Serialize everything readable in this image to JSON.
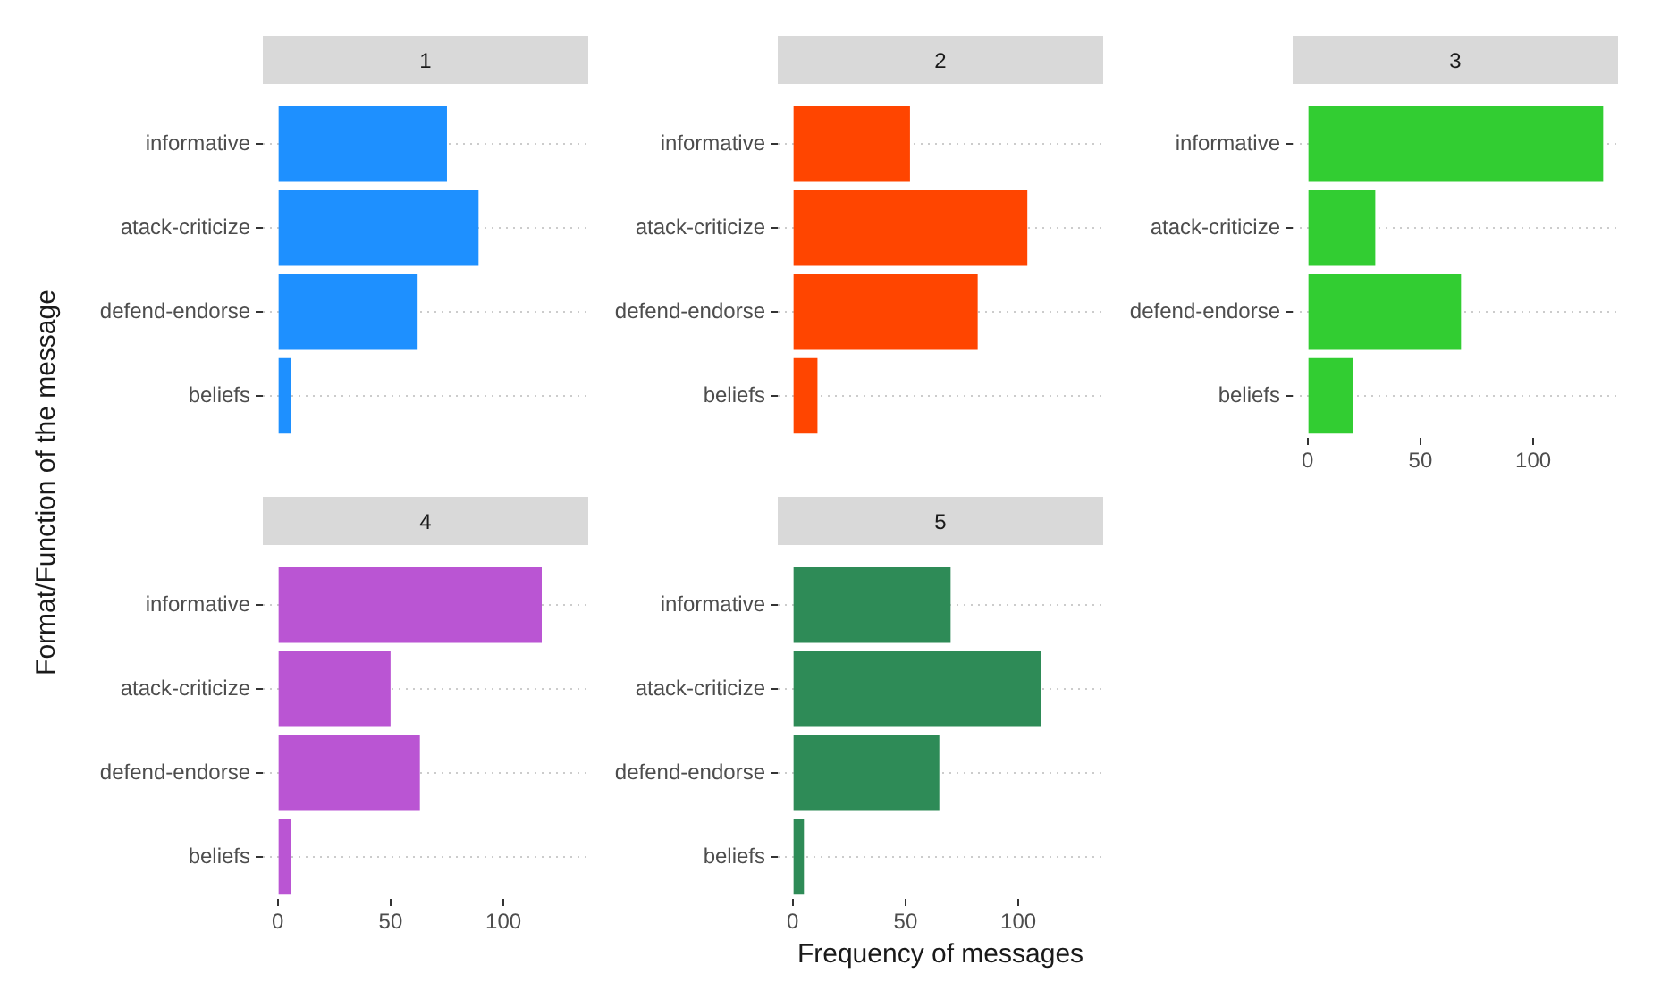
{
  "chart_data": [
    {
      "type": "bar",
      "orientation": "horizontal",
      "title": "1",
      "ylabel": "Format/Function of the message",
      "categories": [
        "informative",
        "atack-criticize",
        "defend-endorse",
        "beliefs"
      ],
      "values": [
        75,
        89,
        62,
        6
      ],
      "color": "#1e90ff",
      "xlim": [
        -6.6,
        137.6
      ],
      "xticks": [
        0,
        50,
        100
      ],
      "grid": "y",
      "tick_labels": "y"
    },
    {
      "type": "bar",
      "orientation": "horizontal",
      "title": "2",
      "categories": [
        "informative",
        "atack-criticize",
        "defend-endorse",
        "beliefs"
      ],
      "values": [
        52,
        104,
        82,
        11
      ],
      "color": "#ff4500",
      "xlim": [
        -6.6,
        137.6
      ],
      "xticks": [
        0,
        50,
        100
      ],
      "grid": "y",
      "tick_labels": "y"
    },
    {
      "type": "bar",
      "orientation": "horizontal",
      "title": "3",
      "categories": [
        "informative",
        "atack-criticize",
        "defend-endorse",
        "beliefs"
      ],
      "values": [
        131,
        30,
        68,
        20
      ],
      "color": "#32cd32",
      "xlim": [
        -6.6,
        137.6
      ],
      "xticks": [
        0,
        50,
        100
      ],
      "grid": "y"
    },
    {
      "type": "bar",
      "orientation": "horizontal",
      "title": "4",
      "categories": [
        "informative",
        "atack-criticize",
        "defend-endorse",
        "beliefs"
      ],
      "values": [
        117,
        50,
        63,
        6
      ],
      "color": "#ba55d3",
      "xlim": [
        -6.6,
        137.6
      ],
      "xticks": [
        0,
        50,
        100
      ],
      "grid": "y"
    },
    {
      "type": "bar",
      "orientation": "horizontal",
      "title": "5",
      "xlabel": "Frequency of messages",
      "categories": [
        "informative",
        "atack-criticize",
        "defend-endorse",
        "beliefs"
      ],
      "values": [
        70,
        110,
        65,
        5
      ],
      "color": "#2e8b57",
      "xlim": [
        -6.6,
        137.6
      ],
      "xticks": [
        0,
        50,
        100
      ],
      "grid": "y"
    }
  ]
}
